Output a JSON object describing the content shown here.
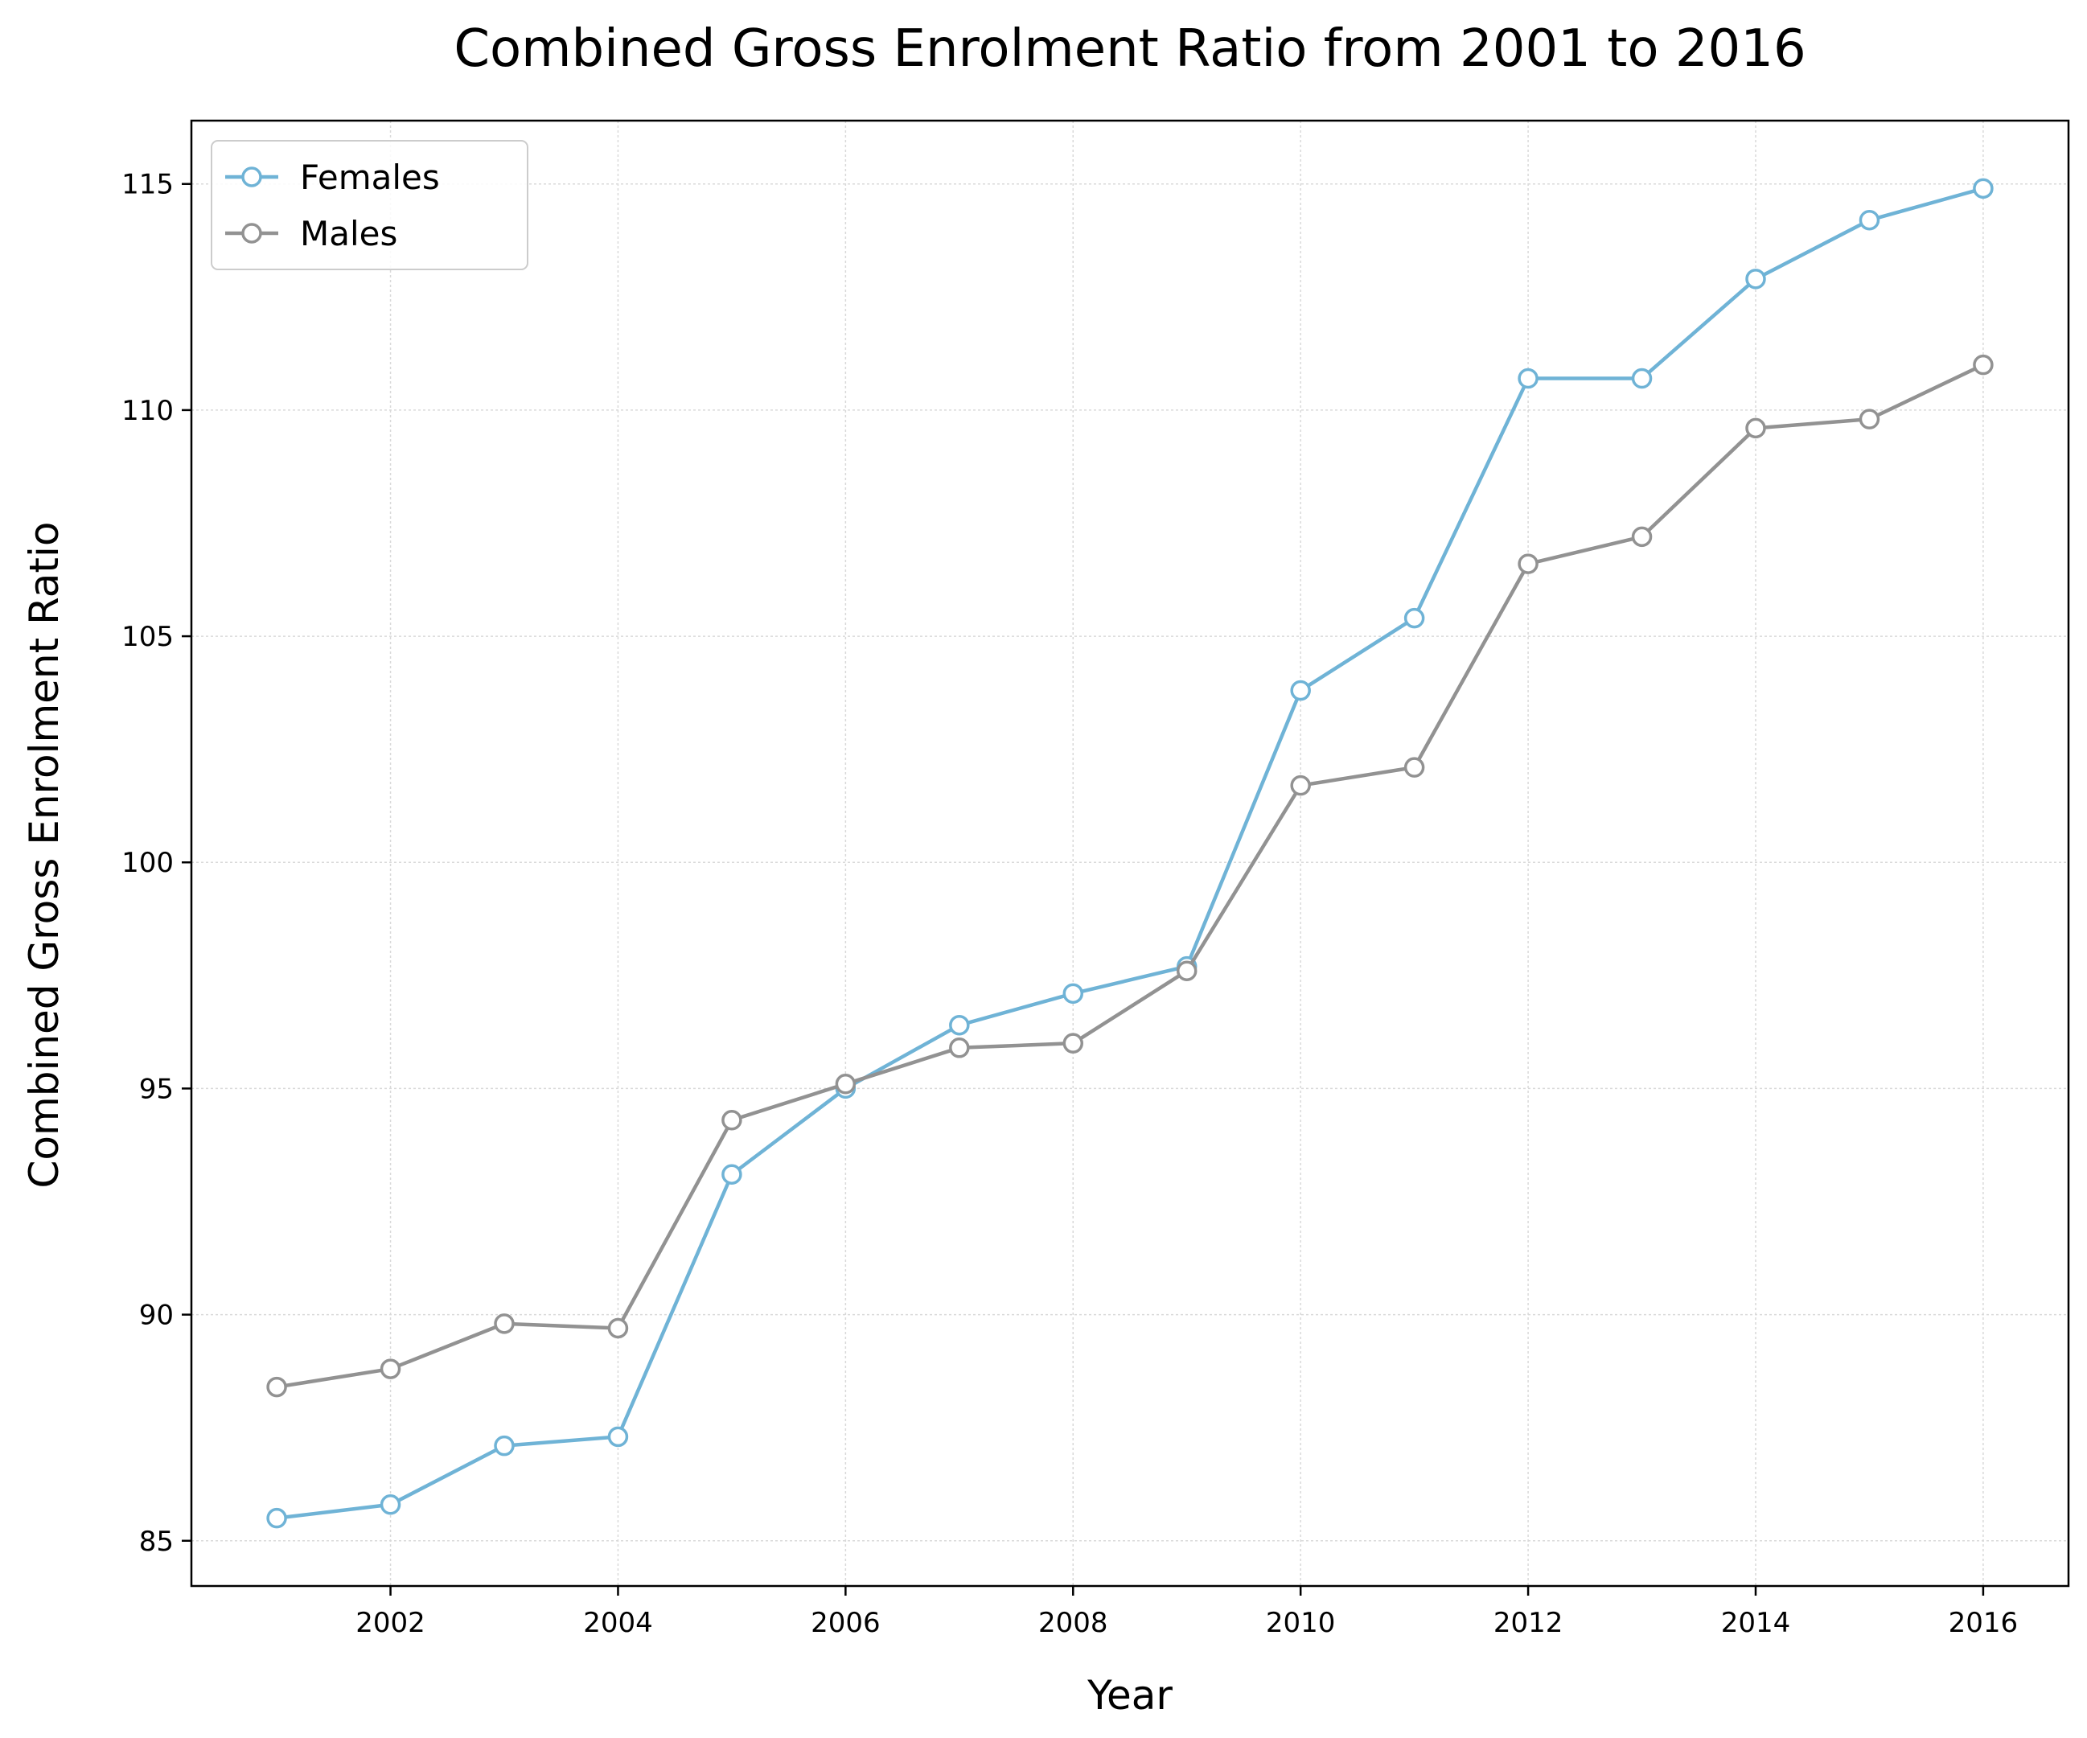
{
  "chart_data": {
    "type": "line",
    "title": "Combined Gross Enrolment Ratio from 2001 to 2016",
    "xlabel": "Year",
    "ylabel": "Combined Gross Enrolment Ratio",
    "x": [
      2001,
      2002,
      2003,
      2004,
      2005,
      2006,
      2007,
      2008,
      2009,
      2010,
      2011,
      2012,
      2013,
      2014,
      2015,
      2016
    ],
    "xlim": [
      2000.25,
      2016.75
    ],
    "ylim": [
      84,
      116.4
    ],
    "xticks": [
      2002,
      2004,
      2006,
      2008,
      2010,
      2012,
      2014,
      2016
    ],
    "yticks": [
      85,
      90,
      95,
      100,
      105,
      110,
      115
    ],
    "grid": true,
    "legend_position": "top-left",
    "series": [
      {
        "name": "Females",
        "color": "#6fb3d6",
        "values": [
          85.5,
          85.8,
          87.1,
          87.3,
          93.1,
          95.0,
          96.4,
          97.1,
          97.7,
          103.8,
          105.4,
          110.7,
          110.7,
          112.9,
          114.2,
          114.9
        ]
      },
      {
        "name": "Males",
        "color": "#929292",
        "values": [
          88.4,
          88.8,
          89.8,
          89.7,
          94.3,
          95.1,
          95.9,
          96.0,
          97.6,
          101.7,
          102.1,
          106.6,
          107.2,
          109.6,
          109.8,
          111.0
        ]
      }
    ]
  }
}
